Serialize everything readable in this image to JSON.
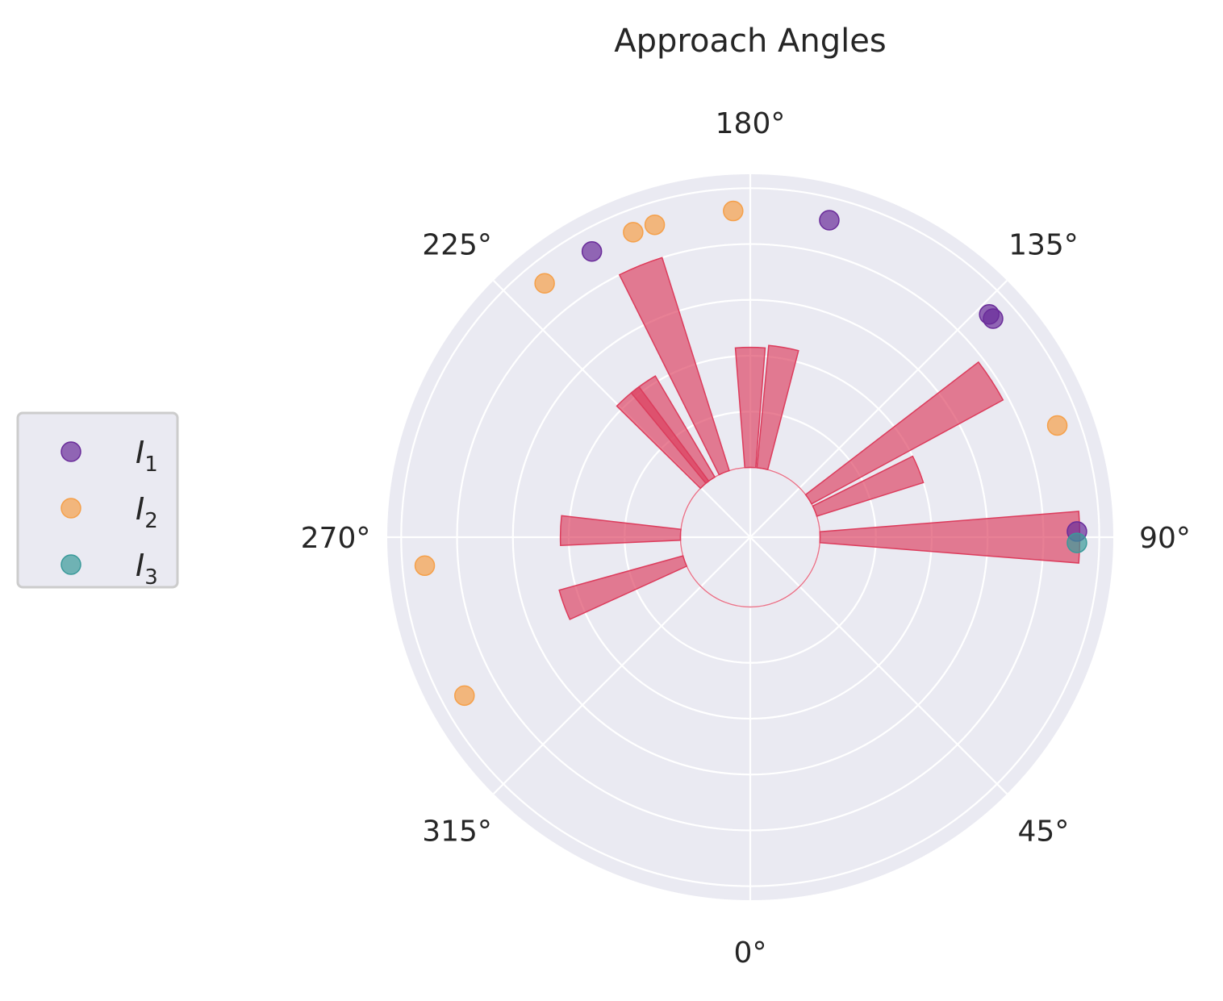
{
  "chart_data": {
    "type": "polar-histogram",
    "title": "Approach Angles",
    "angle_zero_location": "bottom",
    "angle_direction": "counterclockwise",
    "theta_tick_labels": [
      "0°",
      "45°",
      "90°",
      "135°",
      "180°",
      "225°",
      "270°",
      "315°"
    ],
    "bar_color": "#dc3c5c",
    "bars": [
      {
        "theta_center": 90,
        "value": 9.3
      },
      {
        "theta_center": 112,
        "value": 4.0
      },
      {
        "theta_center": 123,
        "value": 7.8
      },
      {
        "theta_center": 170,
        "value": 4.4
      },
      {
        "theta_center": 180,
        "value": 4.3
      },
      {
        "theta_center": 202,
        "value": 8.0
      },
      {
        "theta_center": 215,
        "value": 4.2
      },
      {
        "theta_center": 221,
        "value": 4.2
      },
      {
        "theta_center": 268,
        "value": 4.3
      },
      {
        "theta_center": 290,
        "value": 4.6
      }
    ],
    "legend": {
      "placement": "left",
      "entries": [
        {
          "label_main": "I",
          "label_sub": "1",
          "color": "#6a2c9a"
        },
        {
          "label_main": "I",
          "label_sub": "2",
          "color": "#f5a04a"
        },
        {
          "label_main": "I",
          "label_sub": "3",
          "color": "#3a9a9a"
        }
      ]
    },
    "points": [
      {
        "series": "I1",
        "theta": 166
      },
      {
        "series": "I1",
        "theta": 133
      },
      {
        "series": "I1",
        "theta": 132
      },
      {
        "series": "I1",
        "theta": 91
      },
      {
        "series": "I1",
        "theta": 209
      },
      {
        "series": "I2",
        "theta": 183
      },
      {
        "series": "I2",
        "theta": 197
      },
      {
        "series": "I2",
        "theta": 201
      },
      {
        "series": "I2",
        "theta": 219
      },
      {
        "series": "I2",
        "theta": 110
      },
      {
        "series": "I2",
        "theta": 275
      },
      {
        "series": "I2",
        "theta": 299
      },
      {
        "series": "I3",
        "theta": 89
      }
    ]
  }
}
